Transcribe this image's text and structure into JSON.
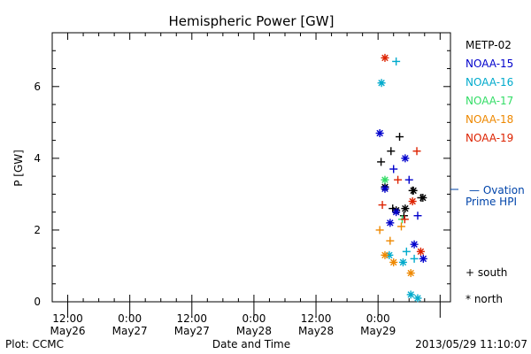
{
  "chart_data": {
    "type": "scatter",
    "title": "Hemispheric Power [GW]",
    "xlabel": "Date and Time",
    "ylabel": "P [GW]",
    "xlim": [
      "2013-05-26T09:00",
      "2013-05-29T14:00"
    ],
    "ylim": [
      0,
      7.5
    ],
    "y_ticks": [
      0,
      2,
      4,
      6
    ],
    "x_ticks": [
      {
        "time": "2013-05-26T12:00",
        "line1": "12:00",
        "line2": "May26"
      },
      {
        "time": "2013-05-27T00:00",
        "line1": "0:00",
        "line2": "May27"
      },
      {
        "time": "2013-05-27T12:00",
        "line1": "12:00",
        "line2": "May27"
      },
      {
        "time": "2013-05-28T00:00",
        "line1": "0:00",
        "line2": "May28"
      },
      {
        "time": "2013-05-28T12:00",
        "line1": "12:00",
        "line2": "May28"
      },
      {
        "time": "2013-05-29T00:00",
        "line1": "0:00",
        "line2": "May29"
      }
    ],
    "series": [
      {
        "name": "METP-02",
        "color": "#000000",
        "south": [
          {
            "x": "2013-05-29T00:35",
            "y": 3.9
          },
          {
            "x": "2013-05-29T02:30",
            "y": 4.2
          },
          {
            "x": "2013-05-29T02:50",
            "y": 2.6
          },
          {
            "x": "2013-05-29T04:10",
            "y": 4.6
          },
          {
            "x": "2013-05-29T05:00",
            "y": 2.4
          },
          {
            "x": "2013-05-29T06:40",
            "y": 3.1
          },
          {
            "x": "2013-05-29T08:20",
            "y": 2.9
          }
        ],
        "north": [
          {
            "x": "2013-05-29T01:20",
            "y": 3.2
          },
          {
            "x": "2013-05-29T03:30",
            "y": 2.55
          },
          {
            "x": "2013-05-29T05:15",
            "y": 2.6
          },
          {
            "x": "2013-05-29T06:50",
            "y": 3.1
          },
          {
            "x": "2013-05-29T08:40",
            "y": 2.9
          }
        ]
      },
      {
        "name": "NOAA-15",
        "color": "#0000cc",
        "south": [
          {
            "x": "2013-05-29T03:00",
            "y": 3.7
          },
          {
            "x": "2013-05-29T06:00",
            "y": 3.4
          },
          {
            "x": "2013-05-29T07:40",
            "y": 2.4
          }
        ],
        "north": [
          {
            "x": "2013-05-29T00:20",
            "y": 4.7
          },
          {
            "x": "2013-05-29T01:20",
            "y": 3.15
          },
          {
            "x": "2013-05-29T02:20",
            "y": 2.2
          },
          {
            "x": "2013-05-29T03:30",
            "y": 2.5
          },
          {
            "x": "2013-05-29T05:15",
            "y": 4.0
          },
          {
            "x": "2013-05-29T07:00",
            "y": 1.6
          },
          {
            "x": "2013-05-29T08:45",
            "y": 1.2
          }
        ]
      },
      {
        "name": "NOAA-16",
        "color": "#00aacc",
        "south": [
          {
            "x": "2013-05-29T03:30",
            "y": 6.7
          },
          {
            "x": "2013-05-29T05:30",
            "y": 1.4
          },
          {
            "x": "2013-05-29T07:00",
            "y": 1.2
          }
        ],
        "north": [
          {
            "x": "2013-05-29T00:40",
            "y": 6.1
          },
          {
            "x": "2013-05-29T02:10",
            "y": 1.3
          },
          {
            "x": "2013-05-29T04:50",
            "y": 1.1
          },
          {
            "x": "2013-05-29T06:20",
            "y": 0.2
          },
          {
            "x": "2013-05-29T07:40",
            "y": 0.1
          }
        ]
      },
      {
        "name": "NOAA-17",
        "color": "#33dd66",
        "south": [
          {
            "x": "2013-05-29T04:40",
            "y": 2.3
          }
        ],
        "north": [
          {
            "x": "2013-05-29T01:20",
            "y": 3.4
          }
        ]
      },
      {
        "name": "NOAA-18",
        "color": "#ee8800",
        "south": [
          {
            "x": "2013-05-29T00:20",
            "y": 2.0
          },
          {
            "x": "2013-05-29T02:20",
            "y": 1.7
          },
          {
            "x": "2013-05-29T04:30",
            "y": 2.1
          }
        ],
        "north": [
          {
            "x": "2013-05-29T01:20",
            "y": 1.3
          },
          {
            "x": "2013-05-29T03:00",
            "y": 1.1
          },
          {
            "x": "2013-05-29T06:20",
            "y": 0.8
          }
        ]
      },
      {
        "name": "NOAA-19",
        "color": "#dd2200",
        "south": [
          {
            "x": "2013-05-29T00:50",
            "y": 2.7
          },
          {
            "x": "2013-05-29T03:50",
            "y": 3.4
          },
          {
            "x": "2013-05-29T05:10",
            "y": 2.3
          },
          {
            "x": "2013-05-29T07:30",
            "y": 4.2
          }
        ],
        "north": [
          {
            "x": "2013-05-29T01:20",
            "y": 6.8
          },
          {
            "x": "2013-05-29T06:40",
            "y": 2.8
          },
          {
            "x": "2013-05-29T08:15",
            "y": 1.4
          }
        ]
      }
    ],
    "reference_line": {
      "label_line1": "— Ovation",
      "label_line2": "Prime HPI",
      "color": "#0044aa"
    },
    "marker_key": {
      "south": "+ south",
      "north": "* north"
    },
    "footer": {
      "left": "Plot: CCMC",
      "right": "2013/05/29 11:10:07"
    }
  }
}
